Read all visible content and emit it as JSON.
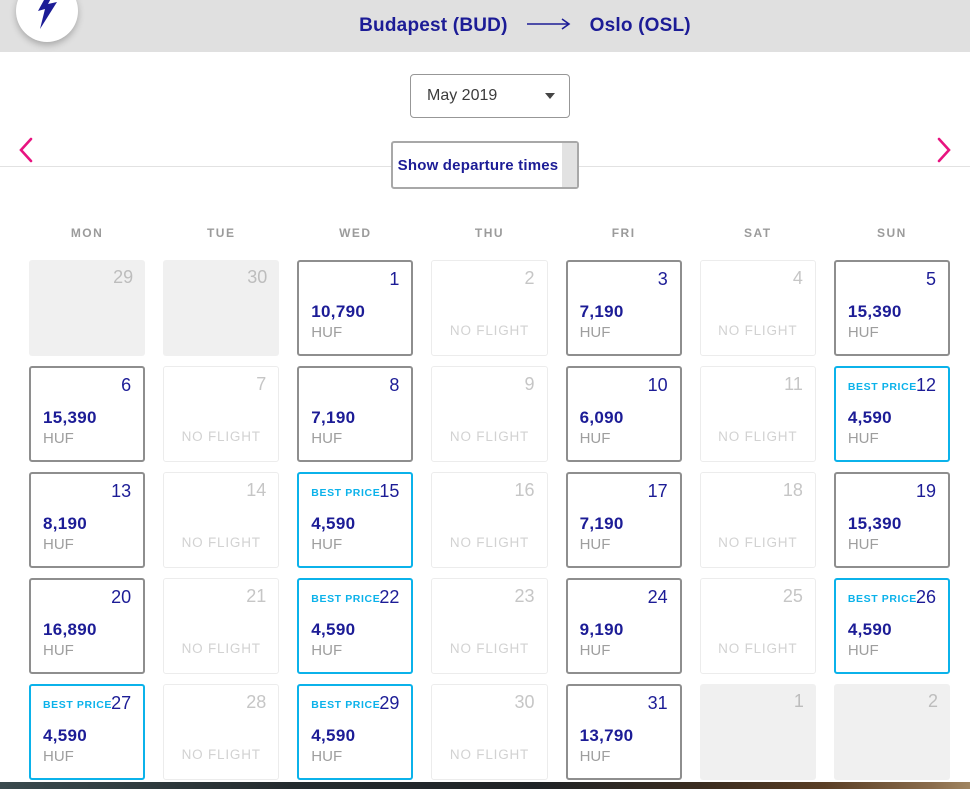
{
  "route_header": {
    "origin": "Budapest (BUD)",
    "destination": "Oslo (OSL)"
  },
  "month_nav": {
    "selected_month": "May 2019"
  },
  "toolbar": {
    "show_departure_times": "Show departure times"
  },
  "calendar": {
    "day_headers": [
      "MON",
      "TUE",
      "WED",
      "THU",
      "FRI",
      "SAT",
      "SUN"
    ],
    "best_price_label": "BEST PRICE",
    "no_flight_label": "NO FLIGHT",
    "currency": "HUF",
    "cells": [
      {
        "day": "29",
        "type": "other"
      },
      {
        "day": "30",
        "type": "other"
      },
      {
        "day": "1",
        "type": "price",
        "price": "10,790"
      },
      {
        "day": "2",
        "type": "noflight"
      },
      {
        "day": "3",
        "type": "price",
        "price": "7,190"
      },
      {
        "day": "4",
        "type": "noflight"
      },
      {
        "day": "5",
        "type": "price",
        "price": "15,390"
      },
      {
        "day": "6",
        "type": "price",
        "price": "15,390"
      },
      {
        "day": "7",
        "type": "noflight"
      },
      {
        "day": "8",
        "type": "price",
        "price": "7,190"
      },
      {
        "day": "9",
        "type": "noflight"
      },
      {
        "day": "10",
        "type": "price",
        "price": "6,090"
      },
      {
        "day": "11",
        "type": "noflight"
      },
      {
        "day": "12",
        "type": "best",
        "price": "4,590"
      },
      {
        "day": "13",
        "type": "price",
        "price": "8,190"
      },
      {
        "day": "14",
        "type": "noflight"
      },
      {
        "day": "15",
        "type": "best",
        "price": "4,590"
      },
      {
        "day": "16",
        "type": "noflight"
      },
      {
        "day": "17",
        "type": "price",
        "price": "7,190"
      },
      {
        "day": "18",
        "type": "noflight"
      },
      {
        "day": "19",
        "type": "price",
        "price": "15,390"
      },
      {
        "day": "20",
        "type": "price",
        "price": "16,890"
      },
      {
        "day": "21",
        "type": "noflight"
      },
      {
        "day": "22",
        "type": "best",
        "price": "4,590"
      },
      {
        "day": "23",
        "type": "noflight"
      },
      {
        "day": "24",
        "type": "price",
        "price": "9,190"
      },
      {
        "day": "25",
        "type": "noflight"
      },
      {
        "day": "26",
        "type": "best",
        "price": "4,590"
      },
      {
        "day": "27",
        "type": "best",
        "price": "4,590"
      },
      {
        "day": "28",
        "type": "noflight"
      },
      {
        "day": "29",
        "type": "best",
        "price": "4,590"
      },
      {
        "day": "30",
        "type": "noflight"
      },
      {
        "day": "31",
        "type": "price",
        "price": "13,790"
      },
      {
        "day": "1",
        "type": "other"
      },
      {
        "day": "2",
        "type": "other"
      }
    ]
  },
  "icons": {
    "logo": "airline-plane-bolt",
    "route_arrow": "long-arrow-right",
    "prev": "chevron-left",
    "next": "chevron-right",
    "month_dropdown": "caret-down"
  },
  "colors": {
    "navy": "#1c1c96",
    "cyan": "#0bb2ea",
    "pink": "#e81380",
    "header-bg": "#e0e0e0"
  }
}
